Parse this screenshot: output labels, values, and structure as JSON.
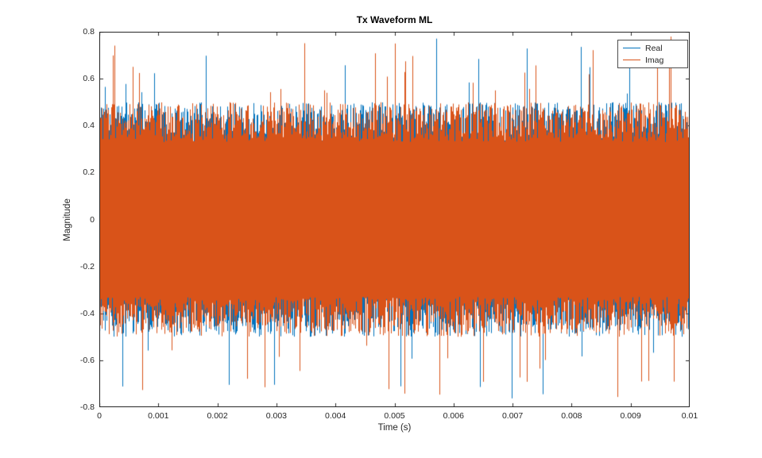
{
  "chart_data": {
    "type": "line",
    "title": "Tx Waveform ML",
    "xlabel": "Time (s)",
    "ylabel": "Magnitude",
    "xlim": [
      0,
      0.01
    ],
    "ylim": [
      -0.8,
      0.8
    ],
    "xticks": [
      0,
      0.001,
      0.002,
      0.003,
      0.004,
      0.005,
      0.006,
      0.007,
      0.008,
      0.009,
      0.01
    ],
    "xtick_labels": [
      "0",
      "0.001",
      "0.002",
      "0.003",
      "0.004",
      "0.005",
      "0.006",
      "0.007",
      "0.008",
      "0.009",
      "0.01"
    ],
    "yticks": [
      -0.8,
      -0.6,
      -0.4,
      -0.2,
      0,
      0.2,
      0.4,
      0.6,
      0.8
    ],
    "ytick_labels": [
      "-0.8",
      "-0.6",
      "-0.4",
      "-0.2",
      "0",
      "0.2",
      "0.4",
      "0.6",
      "0.8"
    ],
    "grid": false,
    "legend": {
      "position": "top-right",
      "entries": [
        {
          "label": "Real",
          "color": "#0072BD"
        },
        {
          "label": "Imag",
          "color": "#D95319"
        }
      ]
    },
    "series": [
      {
        "name": "Real",
        "color": "#0072BD",
        "description": "dense zero-mean noise waveform spanning full time axis; typical envelope about +/-0.45, occasional spikes to +/-0.78"
      },
      {
        "name": "Imag",
        "color": "#D95319",
        "description": "dense zero-mean noise waveform drawn over Real; typical envelope about +/-0.45, occasional spikes to +/-0.78; solid core band about +/-0.33"
      }
    ],
    "noise_model": {
      "seed": 42,
      "base_amp": 0.33,
      "amp_jitter": 0.17,
      "spike_prob": 0.03,
      "spike_base": 0.52,
      "spike_extra": 0.26,
      "max_amp": 0.78,
      "columns": 743
    }
  },
  "axis_color": "#262626"
}
